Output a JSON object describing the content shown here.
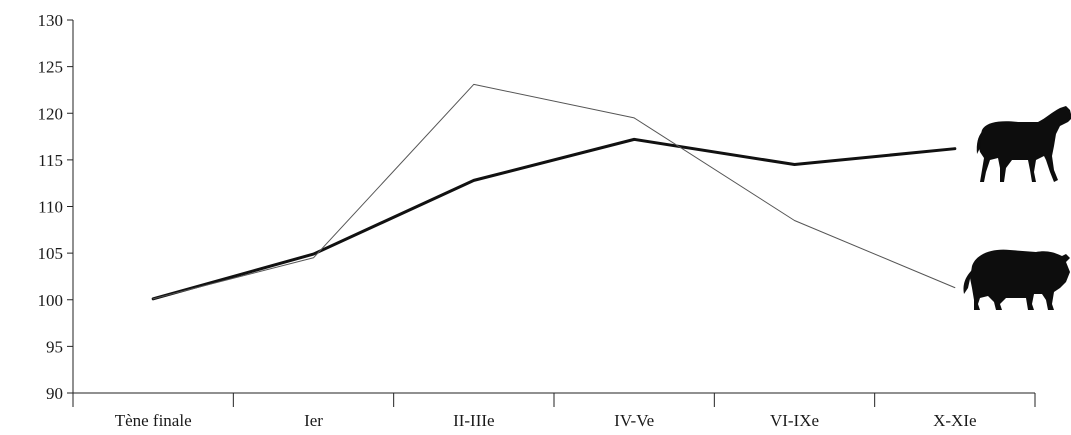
{
  "chart_data": {
    "type": "line",
    "categories": [
      "Tène finale",
      "Ier",
      "II-IIIe",
      "IV-Ve",
      "VI-IXe",
      "X-XIe"
    ],
    "ylim": [
      90,
      130
    ],
    "yticks": [
      90,
      95,
      100,
      105,
      110,
      115,
      120,
      125,
      130
    ],
    "grid": false,
    "legend": "none (silhouette icons at right end of lines)",
    "series": [
      {
        "values": [
          100.1,
          104.9,
          112.8,
          117.2,
          114.5,
          116.2
        ],
        "color": "#111111",
        "weight": "thick",
        "icon": "horse-silhouette-icon"
      },
      {
        "values": [
          100.1,
          104.5,
          123.1,
          119.5,
          108.5,
          101.3
        ],
        "color": "#555555",
        "weight": "thin",
        "icon": "bull-silhouette-icon"
      }
    ]
  }
}
